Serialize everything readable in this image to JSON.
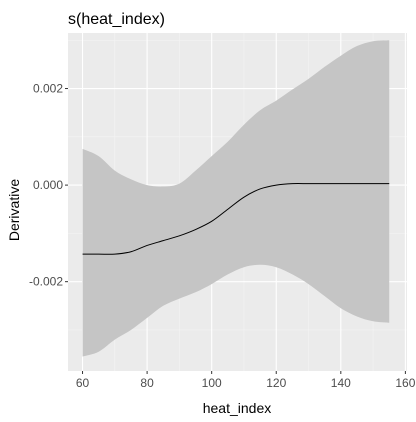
{
  "chart_data": {
    "type": "line",
    "title": "s(heat_index)",
    "xlabel": "heat_index",
    "ylabel": "Derivative",
    "xlim": [
      55.5,
      160.5
    ],
    "ylim": [
      -0.00385,
      0.00315
    ],
    "x_ticks": [
      60,
      80,
      100,
      120,
      140,
      160
    ],
    "x_tick_labels": [
      "60",
      "80",
      "100",
      "120",
      "140",
      "160"
    ],
    "y_ticks": [
      -0.002,
      0.0,
      0.002
    ],
    "y_tick_labels": [
      "-0.002",
      "0.000",
      "0.002"
    ],
    "grid": true,
    "legend": "none",
    "colors": {
      "panel": "#ebebeb",
      "grid_major": "#ffffff",
      "grid_minor": "#f4f4f4",
      "ribbon": "#c5c5c5",
      "line": "#000000"
    },
    "series": [
      {
        "x": [
          60,
          65,
          70,
          75,
          80,
          85,
          90,
          95,
          100,
          105,
          110,
          115,
          120,
          125,
          130,
          135,
          140,
          145,
          150,
          155
        ],
        "y": [
          -0.00143,
          -0.00143,
          -0.00143,
          -0.00138,
          -0.00125,
          -0.00115,
          -0.00105,
          -0.00092,
          -0.00075,
          -0.0005,
          -0.00025,
          -8e-05,
          0.0,
          3e-05,
          3e-05,
          3e-05,
          3e-05,
          3e-05,
          3e-05,
          3e-05
        ],
        "lower": [
          -0.00355,
          -0.00345,
          -0.0032,
          -0.003,
          -0.00275,
          -0.0025,
          -0.00235,
          -0.00222,
          -0.00205,
          -0.00185,
          -0.0017,
          -0.00165,
          -0.0017,
          -0.00185,
          -0.00205,
          -0.0023,
          -0.00255,
          -0.00272,
          -0.00282,
          -0.00285
        ],
        "upper": [
          0.00075,
          0.0006,
          0.0003,
          0.00012,
          0.0,
          -3e-05,
          3e-05,
          0.0003,
          0.0006,
          0.0009,
          0.00125,
          0.00155,
          0.00175,
          0.00198,
          0.0022,
          0.00245,
          0.00268,
          0.00288,
          0.00298,
          0.003
        ]
      }
    ]
  }
}
